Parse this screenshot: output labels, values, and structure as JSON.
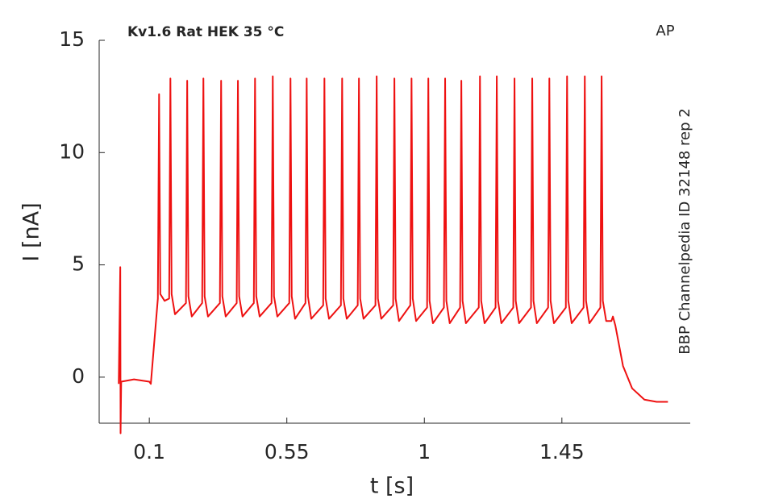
{
  "chart_data": {
    "type": "line",
    "title": "Kv1.6  Rat  HEK  35 °C",
    "annotation": "AP",
    "side_label": "BBP Channelpedia ID 32148 rep 2",
    "xlabel": "t [s]",
    "ylabel": "I [nA]",
    "xlim": [
      -0.064,
      1.87
    ],
    "ylim": [
      -2.05,
      15
    ],
    "xticks": [
      0.1,
      0.55,
      1,
      1.45
    ],
    "yticks": [
      0,
      5,
      10,
      15
    ],
    "grid": false,
    "x": [
      0,
      0.005,
      0.006,
      0.008,
      0.05,
      0.1,
      0.105,
      0.128,
      0.132,
      0.136,
      0.15,
      0.165,
      0.169,
      0.173,
      0.184,
      0.22,
      0.224,
      0.228,
      0.239,
      0.273,
      0.277,
      0.281,
      0.292,
      0.331,
      0.335,
      0.339,
      0.35,
      0.386,
      0.39,
      0.394,
      0.405,
      0.442,
      0.446,
      0.45,
      0.461,
      0.5,
      0.504,
      0.508,
      0.519,
      0.558,
      0.562,
      0.566,
      0.577,
      0.611,
      0.615,
      0.619,
      0.63,
      0.669,
      0.673,
      0.677,
      0.688,
      0.727,
      0.731,
      0.735,
      0.746,
      0.782,
      0.786,
      0.79,
      0.801,
      0.84,
      0.844,
      0.848,
      0.859,
      0.898,
      0.902,
      0.906,
      0.917,
      0.954,
      0.958,
      0.962,
      0.973,
      1.009,
      1.013,
      1.017,
      1.028,
      1.064,
      1.068,
      1.072,
      1.083,
      1.117,
      1.121,
      1.125,
      1.136,
      1.178,
      1.182,
      1.186,
      1.197,
      1.233,
      1.237,
      1.241,
      1.252,
      1.291,
      1.295,
      1.299,
      1.31,
      1.349,
      1.353,
      1.357,
      1.368,
      1.405,
      1.409,
      1.413,
      1.424,
      1.463,
      1.467,
      1.471,
      1.482,
      1.521,
      1.525,
      1.529,
      1.54,
      1.576,
      1.58,
      1.584,
      1.595,
      1.612,
      1.617,
      1.625,
      1.65,
      1.68,
      1.72,
      1.76,
      1.797
    ],
    "series": [
      {
        "color": "#ee1111",
        "values": [
          -0.3,
          4.9,
          -2.5,
          -0.2,
          -0.1,
          -0.2,
          -0.3,
          3.5,
          12.6,
          3.7,
          3.4,
          3.5,
          13.3,
          3.7,
          2.8,
          3.3,
          13.2,
          3.6,
          2.7,
          3.3,
          13.3,
          3.6,
          2.7,
          3.3,
          13.2,
          3.6,
          2.7,
          3.3,
          13.2,
          3.6,
          2.7,
          3.3,
          13.3,
          3.6,
          2.7,
          3.3,
          13.4,
          3.6,
          2.7,
          3.3,
          13.3,
          3.6,
          2.6,
          3.3,
          13.3,
          3.6,
          2.6,
          3.2,
          13.3,
          3.5,
          2.6,
          3.2,
          13.3,
          3.5,
          2.6,
          3.2,
          13.3,
          3.5,
          2.6,
          3.2,
          13.4,
          3.5,
          2.6,
          3.2,
          13.3,
          3.5,
          2.5,
          3.2,
          13.3,
          3.5,
          2.5,
          3.1,
          13.3,
          3.4,
          2.4,
          3.1,
          13.3,
          3.4,
          2.4,
          3.1,
          13.2,
          3.4,
          2.4,
          3.1,
          13.4,
          3.4,
          2.4,
          3.1,
          13.4,
          3.4,
          2.4,
          3.1,
          13.3,
          3.4,
          2.4,
          3.1,
          13.3,
          3.4,
          2.4,
          3.1,
          13.3,
          3.4,
          2.4,
          3.1,
          13.4,
          3.4,
          2.4,
          3.1,
          13.4,
          3.4,
          2.4,
          3.1,
          13.4,
          3.4,
          2.5,
          2.5,
          2.7,
          2.3,
          0.5,
          -0.5,
          -1.0,
          -1.1,
          -1.1
        ]
      }
    ]
  }
}
